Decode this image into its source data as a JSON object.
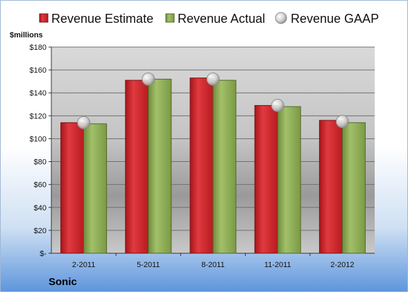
{
  "chart_data": {
    "type": "bar",
    "categories": [
      "2-2011",
      "5-2011",
      "8-2011",
      "11-2011",
      "2-2012"
    ],
    "series": [
      {
        "name": "Revenue Estimate",
        "values": [
          114,
          151,
          153,
          129,
          116
        ],
        "color": "#d0242a"
      },
      {
        "name": "Revenue Actual",
        "values": [
          113,
          152,
          151,
          128,
          114
        ],
        "color": "#8fae5a"
      },
      {
        "name": "Revenue GAAP",
        "values": [
          114,
          152,
          152,
          129,
          115
        ],
        "color": "#c8c8c8",
        "marker": "circle"
      }
    ],
    "ylabel": "$millions",
    "ylim": [
      0,
      180
    ],
    "yticks": [
      "$-",
      "$20",
      "$40",
      "$60",
      "$80",
      "$100",
      "$120",
      "$140",
      "$160",
      "$180"
    ],
    "legend": "top",
    "grid": true,
    "company": "Sonic"
  }
}
